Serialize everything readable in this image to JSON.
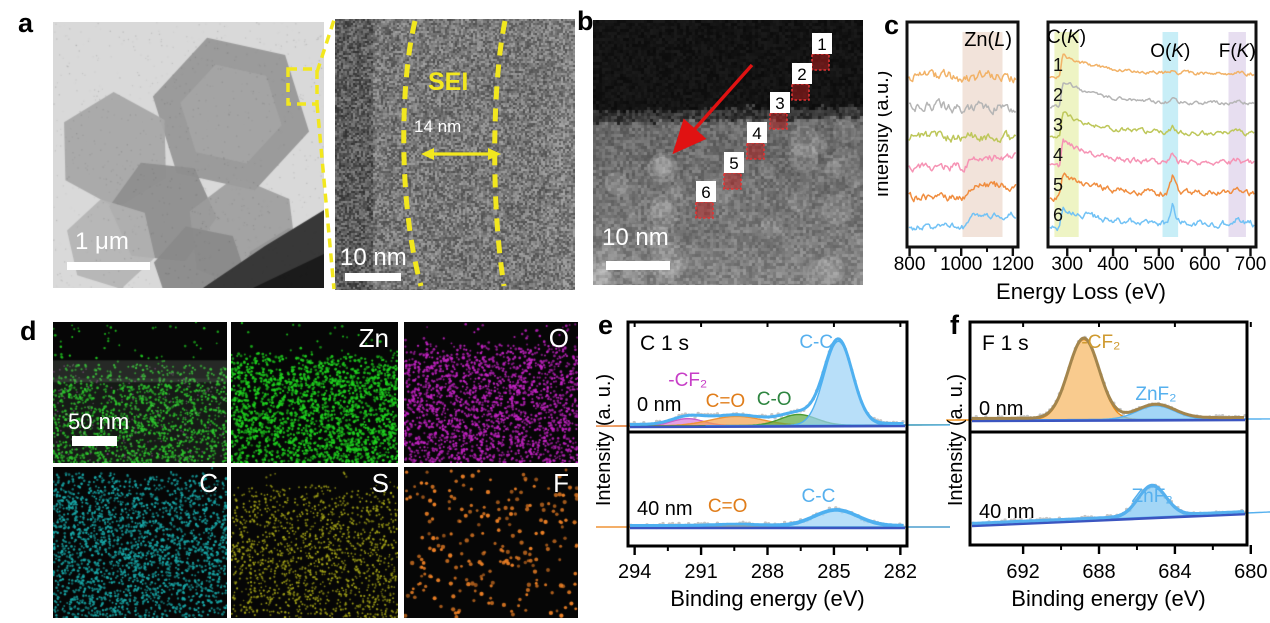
{
  "panels": {
    "a": {
      "label": "a",
      "main": {
        "scalebar": "1 μm"
      },
      "inset": {
        "scalebar": "10 nm",
        "sei": "SEI",
        "thickness": "14 nm"
      }
    },
    "b": {
      "label": "b",
      "scalebar": "10 nm",
      "boxes": [
        "1",
        "2",
        "3",
        "4",
        "5",
        "6"
      ]
    },
    "c": {
      "label": "c"
    },
    "d": {
      "label": "d",
      "scalebar": "50 nm",
      "cells": [
        {
          "element": "",
          "type": "composite",
          "color": "#22d422"
        },
        {
          "element": "Zn",
          "type": "dots",
          "color": "#1fd41f"
        },
        {
          "element": "O",
          "type": "dots",
          "color": "#c623c6"
        },
        {
          "element": "C",
          "type": "dots",
          "color": "#18aaaa"
        },
        {
          "element": "S",
          "type": "dots",
          "color": "#a8a818"
        },
        {
          "element": "F",
          "type": "dots",
          "color": "#f08226"
        }
      ]
    },
    "e": {
      "label": "e"
    },
    "f": {
      "label": "f"
    }
  },
  "chart_data": [
    {
      "id": "eels_left",
      "type": "line",
      "title": "Zn(L)",
      "xlabel": "Energy Loss (eV)",
      "ylabel": "Intensity (a.u.)",
      "xlim": [
        790,
        1220
      ],
      "xticks": [
        800,
        1000,
        1200
      ],
      "minor_ticks": [
        900,
        1100
      ],
      "bands": [
        {
          "label": "Zn(L)",
          "range": [
            1005,
            1160
          ],
          "color": "#f2e3da"
        }
      ],
      "series": [
        {
          "name": "1",
          "color": "#f2b267",
          "noise": 7.0,
          "edge": null
        },
        {
          "name": "2",
          "color": "#b5b5b5",
          "noise": 6.6,
          "edge": null
        },
        {
          "name": "3",
          "color": "#bec75a",
          "noise": 6.2,
          "edge": null
        },
        {
          "name": "4",
          "color": "#f693b4",
          "noise": 5.0,
          "edge": {
            "onset": 1005,
            "rise": 9
          }
        },
        {
          "name": "5",
          "color": "#f08d3f",
          "noise": 5.0,
          "edge": {
            "onset": 1000,
            "rise": 11
          }
        },
        {
          "name": "6",
          "color": "#72c2f5",
          "noise": 4.4,
          "edge": {
            "onset": 1005,
            "rise": 12
          }
        }
      ]
    },
    {
      "id": "eels_right",
      "type": "line",
      "xlabel": "Energy Loss (eV)",
      "ylabel": "Intensity (a.u.)",
      "xlim": [
        258,
        712
      ],
      "xticks": [
        300,
        400,
        500,
        600,
        700
      ],
      "minor_step": 50,
      "bands": [
        {
          "label": "C(K)",
          "range": [
            272,
            325
          ],
          "color": "#eef4c4"
        },
        {
          "label": "O(K)",
          "range": [
            508,
            542
          ],
          "color": "#c8eef7"
        },
        {
          "label": "F(K)",
          "range": [
            652,
            690
          ],
          "color": "#e7def0"
        }
      ],
      "edges": {
        "c_center": 292,
        "o_center": 529,
        "f_center": 670
      },
      "series": [
        {
          "name": "1",
          "color": "#f2b267",
          "noise": 2.4,
          "c_peak": 22,
          "o_peak": 1.5,
          "f_peak": 1.5
        },
        {
          "name": "2",
          "color": "#b5b5b5",
          "noise": 2.4,
          "c_peak": 26,
          "o_peak": 2.0,
          "f_peak": 2.0
        },
        {
          "name": "3",
          "color": "#bec75a",
          "noise": 2.8,
          "c_peak": 24,
          "o_peak": 4.0,
          "f_peak": 2.5
        },
        {
          "name": "4",
          "color": "#f693b4",
          "noise": 3.4,
          "c_peak": 26,
          "o_peak": 7.0,
          "f_peak": 3.5
        },
        {
          "name": "5",
          "color": "#f08d3f",
          "noise": 4.0,
          "c_peak": 22,
          "o_peak": 13.0,
          "f_peak": 3.5
        },
        {
          "name": "6",
          "color": "#72c2f5",
          "noise": 4.4,
          "c_peak": 20,
          "o_peak": 15.0,
          "f_peak": 4.0
        }
      ]
    },
    {
      "id": "xps_c1s",
      "type": "area",
      "title": "C 1 s",
      "xlabel": "Binding energy (eV)",
      "ylabel": "Intensity (a. u.)",
      "xlim": [
        294.3,
        281.7
      ],
      "xticks": [
        294,
        291,
        288,
        285,
        282
      ],
      "minor_ticks": [
        292.5,
        289.5,
        286.5,
        283.5
      ],
      "envelope_color": "#4fb0f0",
      "subplots": [
        {
          "depth": "0 nm",
          "peaks": [
            {
              "name": "-CF₂",
              "center": 291.6,
              "fwhm": 1.7,
              "height": 0.085,
              "fill": "#d977d9",
              "stroke": "#c95fc9",
              "label_color": "#c73ec7",
              "label_at": [
                291.6,
                76
              ]
            },
            {
              "name": "C=O",
              "center": 289.4,
              "fwhm": 2.8,
              "height": 0.11,
              "fill": "#f4a04a",
              "stroke": "#ef9336",
              "label_color": "#e07d1a",
              "label_at": [
                289.9,
                97
              ]
            },
            {
              "name": "C-O",
              "center": 286.6,
              "fwhm": 1.9,
              "height": 0.13,
              "fill": "#5aa83c",
              "stroke": "#4c9a30",
              "label_color": "#2e8540",
              "label_at": [
                287.7,
                95
              ]
            },
            {
              "name": "C-C",
              "center": 284.8,
              "fwhm": 1.5,
              "height": 1.0,
              "fill": "#9ad2f6",
              "stroke": "#4fb0f0",
              "label_color": "#56b0ee",
              "label_at": [
                285.8,
                38
              ]
            }
          ]
        },
        {
          "depth": "40 nm",
          "peaks": [
            {
              "name": "C=O",
              "center": 289.4,
              "fwhm": 2.5,
              "height": 0.015,
              "fill": "#f4a04a",
              "stroke": "#ef9336",
              "label_color": "#e07d1a",
              "label_at": [
                289.8,
                202
              ]
            },
            {
              "name": "C-C",
              "center": 284.9,
              "fwhm": 2.3,
              "height": 0.19,
              "fill": "#9ad2f6",
              "stroke": "#4fb0f0",
              "label_color": "#56b0ee",
              "label_at": [
                285.7,
                192
              ]
            }
          ]
        }
      ]
    },
    {
      "id": "xps_f1s",
      "type": "area",
      "title": "F 1 s",
      "xlabel": "Binding energy (eV)",
      "ylabel": "Intensity (a. u.)",
      "xlim": [
        694.8,
        680.2
      ],
      "xticks": [
        692,
        688,
        684,
        680
      ],
      "minor_ticks": [
        690,
        686,
        682
      ],
      "envelope_color": "#a3854d",
      "subplots": [
        {
          "depth": "0 nm",
          "envelope_color": "#a3854d",
          "peaks": [
            {
              "name": "-CF₂",
              "center": 688.8,
              "fwhm": 1.9,
              "height": 1.0,
              "fill": "#f6b55e",
              "stroke": "#f08c10",
              "label_color": "#cf9a2f",
              "label_at": [
                687.9,
                38
              ]
            },
            {
              "name": "ZnF₂",
              "center": 685.0,
              "fwhm": 2.3,
              "height": 0.17,
              "fill": "#7cc4f2",
              "stroke": "#56b0ee",
              "label_color": "#56b0ee",
              "label_at": [
                685.0,
                90
              ]
            }
          ]
        },
        {
          "depth": "40 nm",
          "envelope_color": "#56b0ee",
          "peaks": [
            {
              "name": "ZnF₂",
              "center": 685.2,
              "fwhm": 1.7,
              "height": 0.38,
              "fill": "#7cc4f2",
              "stroke": "#56b0ee",
              "label_color": "#56b0ee",
              "label_at": [
                685.2,
                192
              ]
            }
          ]
        }
      ]
    }
  ]
}
